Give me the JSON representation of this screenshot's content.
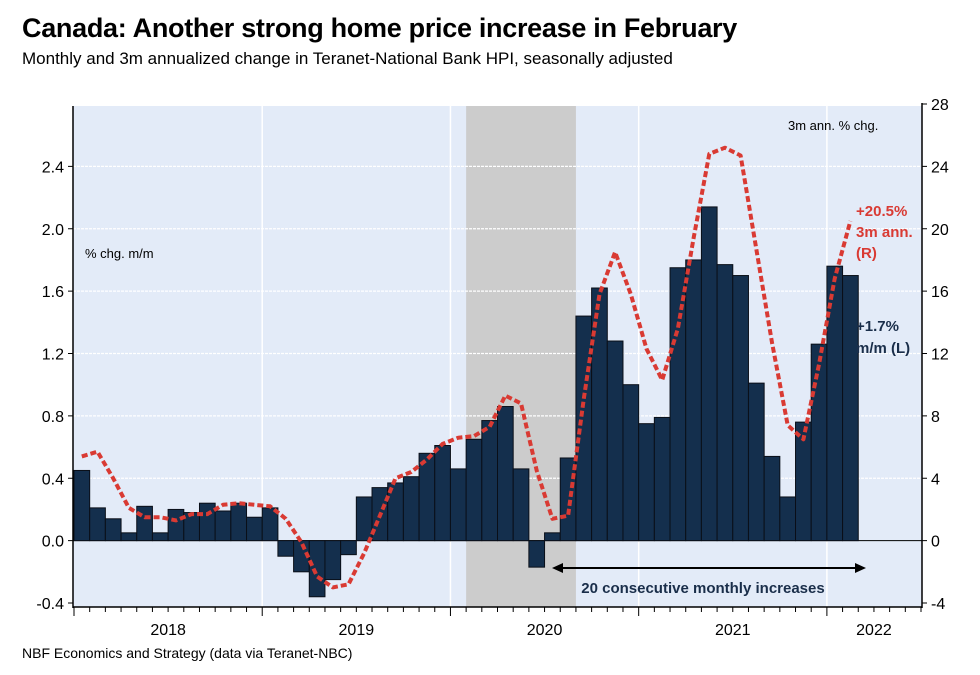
{
  "header": {
    "title": "Canada: Another strong home price increase in February",
    "subtitle": "Monthly and 3m annualized change in Teranet-National Bank HPI, seasonally adjusted"
  },
  "footer": {
    "source": "NBF Economics and Strategy (data via Teranet-NBC)"
  },
  "colors": {
    "plot_background": "#e3ebf8",
    "bar_fill": "#142f4d",
    "bar_stroke": "#0a0f18",
    "line": "#d93a33",
    "shade": "#cccccc",
    "annotation_navy": "#1a2e4a"
  },
  "chart_data": {
    "type": "bar+line",
    "title": "Canada: Another strong home price increase in February",
    "subtitle": "Monthly and 3m annualized change in Teranet-National Bank HPI, seasonally adjusted",
    "x_start": "2018-01",
    "x_end_axis": "2022-06",
    "x_tick_labels": [
      "2018",
      "2019",
      "2020",
      "2021",
      "2022"
    ],
    "grid": true,
    "left_axis": {
      "label": "% chg. m/m",
      "range": [
        -0.4,
        2.8
      ],
      "ticks": [
        -0.4,
        0.0,
        0.4,
        0.8,
        1.2,
        1.6,
        2.0,
        2.4
      ],
      "tick_labels": [
        "-0.4",
        "0.0",
        "0.4",
        "0.8",
        "1.2",
        "1.6",
        "2.0",
        "2.4"
      ]
    },
    "right_axis": {
      "label": "3m ann. % chg.",
      "range": [
        -4,
        28
      ],
      "ticks": [
        -4,
        0,
        4,
        8,
        12,
        16,
        20,
        24,
        28
      ],
      "tick_labels": [
        "-4",
        "0",
        "4",
        "8",
        "12",
        "16",
        "20",
        "24",
        "28"
      ]
    },
    "shaded_period": {
      "start": "2020-02",
      "end": "2020-09"
    },
    "series": [
      {
        "name": "% chg. m/m (L)",
        "type": "bar",
        "axis": "left",
        "values": [
          0.45,
          0.21,
          0.14,
          0.05,
          0.22,
          0.05,
          0.2,
          0.18,
          0.24,
          0.19,
          0.24,
          0.15,
          0.21,
          -0.1,
          -0.2,
          -0.36,
          -0.25,
          -0.09,
          0.28,
          0.34,
          0.37,
          0.41,
          0.56,
          0.61,
          0.46,
          0.65,
          0.77,
          0.86,
          0.46,
          -0.17,
          0.05,
          0.53,
          1.44,
          1.62,
          1.28,
          1.0,
          0.75,
          0.79,
          1.75,
          1.8,
          2.14,
          1.77,
          1.7,
          1.01,
          0.54,
          0.28,
          0.76,
          1.26,
          1.76,
          1.7
        ]
      },
      {
        "name": "3m ann. % chg. (R)",
        "type": "line",
        "style": "dashed",
        "axis": "right",
        "values": [
          5.4,
          5.7,
          4.0,
          2.1,
          1.5,
          1.5,
          1.3,
          1.7,
          1.7,
          2.3,
          2.4,
          2.3,
          2.2,
          1.4,
          -0.1,
          -2.3,
          -3.0,
          -2.8,
          -0.8,
          1.6,
          4.0,
          4.4,
          5.2,
          6.2,
          6.6,
          6.7,
          7.3,
          9.3,
          8.8,
          4.5,
          1.4,
          1.6,
          9.1,
          15.8,
          18.5,
          15.8,
          12.3,
          10.3,
          13.6,
          19.4,
          24.8,
          25.2,
          24.7,
          18.7,
          12.7,
          7.4,
          6.5,
          11.3,
          16.8,
          20.5
        ]
      }
    ],
    "annotations": {
      "left_axis_label": "% chg. m/m",
      "right_axis_label": "3m ann. % chg.",
      "line_label": [
        "+20.5%",
        "3m ann.",
        "(R)"
      ],
      "bar_label": [
        "+1.7%",
        "m/m (L)"
      ],
      "arrow_label": "20 consecutive monthly increases"
    }
  }
}
